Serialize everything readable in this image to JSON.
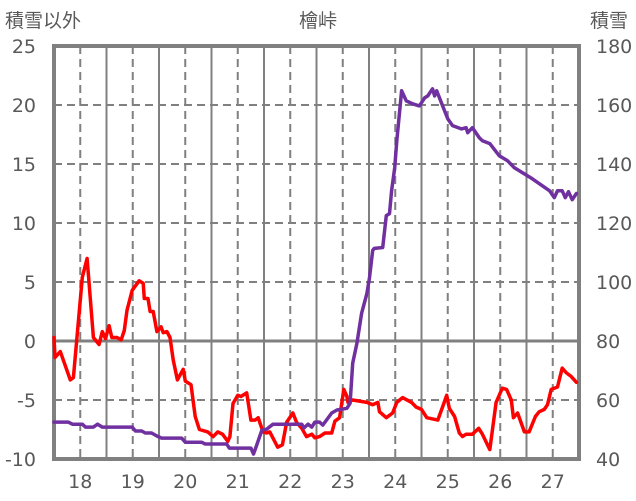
{
  "chart_data": {
    "type": "line",
    "title": "檜峠",
    "ylabel_left": "積雪以外",
    "ylabel_right": "積雪",
    "xlim": [
      17.5,
      27.5
    ],
    "ylim_left": [
      -10,
      25
    ],
    "ylim_right": [
      40,
      180
    ],
    "x_ticks": [
      "18",
      "19",
      "20",
      "21",
      "22",
      "23",
      "24",
      "25",
      "26",
      "27"
    ],
    "y_left_ticks": [
      "25",
      "20",
      "15",
      "10",
      "5",
      "0",
      "-5",
      "-10"
    ],
    "y_right_ticks": [
      "180",
      "160",
      "140",
      "120",
      "100",
      "80",
      "60",
      "40"
    ],
    "grid": true,
    "series": [
      {
        "name": "積雪以外",
        "axis": "left",
        "color": "#ff0000",
        "points": [
          [
            17.5,
            0.3
          ],
          [
            17.52,
            -1.4
          ],
          [
            17.62,
            -0.9
          ],
          [
            17.81,
            -3.3
          ],
          [
            17.87,
            -3.1
          ],
          [
            18.04,
            5.4
          ],
          [
            18.13,
            7.0
          ],
          [
            18.25,
            0.3
          ],
          [
            18.36,
            -0.3
          ],
          [
            18.42,
            0.8
          ],
          [
            18.48,
            0.2
          ],
          [
            18.55,
            1.3
          ],
          [
            18.6,
            0.3
          ],
          [
            18.7,
            0.3
          ],
          [
            18.78,
            0.1
          ],
          [
            18.84,
            0.9
          ],
          [
            18.89,
            2.6
          ],
          [
            18.99,
            4.3
          ],
          [
            19.12,
            5.1
          ],
          [
            19.2,
            4.9
          ],
          [
            19.22,
            3.6
          ],
          [
            19.29,
            3.6
          ],
          [
            19.33,
            2.5
          ],
          [
            19.39,
            2.5
          ],
          [
            19.46,
            0.8
          ],
          [
            19.54,
            1.2
          ],
          [
            19.58,
            0.7
          ],
          [
            19.65,
            0.8
          ],
          [
            19.71,
            0.3
          ],
          [
            19.77,
            -1.6
          ],
          [
            19.85,
            -3.3
          ],
          [
            19.96,
            -2.4
          ],
          [
            20.0,
            -3.4
          ],
          [
            20.11,
            -3.7
          ],
          [
            20.19,
            -6.4
          ],
          [
            20.27,
            -7.5
          ],
          [
            20.43,
            -7.7
          ],
          [
            20.53,
            -8.1
          ],
          [
            20.62,
            -7.7
          ],
          [
            20.71,
            -7.9
          ],
          [
            20.81,
            -8.5
          ],
          [
            20.85,
            -8.1
          ],
          [
            20.91,
            -5.3
          ],
          [
            21.0,
            -4.6
          ],
          [
            21.06,
            -4.7
          ],
          [
            21.17,
            -4.4
          ],
          [
            21.25,
            -6.7
          ],
          [
            21.33,
            -6.7
          ],
          [
            21.39,
            -6.5
          ],
          [
            21.48,
            -7.7
          ],
          [
            21.55,
            -7.8
          ],
          [
            21.61,
            -7.7
          ],
          [
            21.76,
            -9.0
          ],
          [
            21.85,
            -8.8
          ],
          [
            21.93,
            -6.9
          ],
          [
            22.05,
            -6.1
          ],
          [
            22.12,
            -6.9
          ],
          [
            22.22,
            -7.4
          ],
          [
            22.31,
            -8.1
          ],
          [
            22.41,
            -7.9
          ],
          [
            22.47,
            -8.2
          ],
          [
            22.56,
            -8.1
          ],
          [
            22.66,
            -7.8
          ],
          [
            22.79,
            -7.8
          ],
          [
            22.85,
            -6.8
          ],
          [
            22.94,
            -6.5
          ],
          [
            23.02,
            -4.1
          ],
          [
            23.08,
            -4.7
          ],
          [
            23.1,
            -5.2
          ],
          [
            23.19,
            -5.0
          ],
          [
            23.46,
            -5.2
          ],
          [
            23.57,
            -5.4
          ],
          [
            23.67,
            -5.2
          ],
          [
            23.7,
            -6.0
          ],
          [
            23.83,
            -6.5
          ],
          [
            23.95,
            -6.1
          ],
          [
            24.03,
            -5.2
          ],
          [
            24.14,
            -4.8
          ],
          [
            24.31,
            -5.2
          ],
          [
            24.4,
            -5.6
          ],
          [
            24.5,
            -5.8
          ],
          [
            24.6,
            -6.5
          ],
          [
            24.81,
            -6.7
          ],
          [
            24.9,
            -5.6
          ],
          [
            24.98,
            -4.6
          ],
          [
            25.03,
            -5.7
          ],
          [
            25.13,
            -6.4
          ],
          [
            25.22,
            -7.8
          ],
          [
            25.28,
            -8.1
          ],
          [
            25.35,
            -7.9
          ],
          [
            25.47,
            -7.9
          ],
          [
            25.59,
            -7.4
          ],
          [
            25.66,
            -7.9
          ],
          [
            25.8,
            -9.2
          ],
          [
            25.92,
            -5.2
          ],
          [
            26.04,
            -4.0
          ],
          [
            26.12,
            -4.1
          ],
          [
            26.21,
            -5.0
          ],
          [
            26.25,
            -6.5
          ],
          [
            26.33,
            -6.1
          ],
          [
            26.46,
            -7.7
          ],
          [
            26.55,
            -7.7
          ],
          [
            26.67,
            -6.4
          ],
          [
            26.74,
            -6.0
          ],
          [
            26.84,
            -5.8
          ],
          [
            26.9,
            -5.4
          ],
          [
            26.97,
            -4.1
          ],
          [
            27.09,
            -3.9
          ],
          [
            27.18,
            -2.3
          ],
          [
            27.26,
            -2.7
          ],
          [
            27.35,
            -3.0
          ],
          [
            27.45,
            -3.5
          ]
        ]
      },
      {
        "name": "積雪",
        "axis": "right",
        "color": "#7030a0",
        "points": [
          [
            17.5,
            52.5
          ],
          [
            17.77,
            52.5
          ],
          [
            17.85,
            51.8
          ],
          [
            18.04,
            51.8
          ],
          [
            18.1,
            50.8
          ],
          [
            18.25,
            50.8
          ],
          [
            18.33,
            51.8
          ],
          [
            18.42,
            50.8
          ],
          [
            18.99,
            50.8
          ],
          [
            19.05,
            49.5
          ],
          [
            19.17,
            49.5
          ],
          [
            19.24,
            48.8
          ],
          [
            19.36,
            48.8
          ],
          [
            19.46,
            47.8
          ],
          [
            19.55,
            47.1
          ],
          [
            19.93,
            47.1
          ],
          [
            20.0,
            45.7
          ],
          [
            20.31,
            45.7
          ],
          [
            20.38,
            45.1
          ],
          [
            20.79,
            45.1
          ],
          [
            20.84,
            43.7
          ],
          [
            21.25,
            43.7
          ],
          [
            21.3,
            41.7
          ],
          [
            21.35,
            44.1
          ],
          [
            21.46,
            49.8
          ],
          [
            21.55,
            50.1
          ],
          [
            21.67,
            51.8
          ],
          [
            22.22,
            51.8
          ],
          [
            22.26,
            50.5
          ],
          [
            22.34,
            51.8
          ],
          [
            22.41,
            50.8
          ],
          [
            22.47,
            52.5
          ],
          [
            22.56,
            52.5
          ],
          [
            22.62,
            51.5
          ],
          [
            22.79,
            55.6
          ],
          [
            22.89,
            56.6
          ],
          [
            23.08,
            57.2
          ],
          [
            23.14,
            58.9
          ],
          [
            23.19,
            72.5
          ],
          [
            23.27,
            79.2
          ],
          [
            23.36,
            89.4
          ],
          [
            23.46,
            96.1
          ],
          [
            23.51,
            101.5
          ],
          [
            23.57,
            110.7
          ],
          [
            23.6,
            111.4
          ],
          [
            23.76,
            111.7
          ],
          [
            23.83,
            122.5
          ],
          [
            23.89,
            123.2
          ],
          [
            23.93,
            131
          ],
          [
            23.99,
            138.7
          ],
          [
            24.03,
            147.9
          ],
          [
            24.12,
            164.8
          ],
          [
            24.21,
            161.4
          ],
          [
            24.33,
            160.4
          ],
          [
            24.46,
            159.7
          ],
          [
            24.56,
            162.4
          ],
          [
            24.62,
            163.1
          ],
          [
            24.71,
            165.5
          ],
          [
            24.75,
            163.1
          ],
          [
            24.79,
            164.8
          ],
          [
            24.94,
            158
          ],
          [
            25.0,
            155.3
          ],
          [
            25.09,
            153
          ],
          [
            25.26,
            151.9
          ],
          [
            25.35,
            152.3
          ],
          [
            25.38,
            150.6
          ],
          [
            25.47,
            152.3
          ],
          [
            25.6,
            148.9
          ],
          [
            25.66,
            147.9
          ],
          [
            25.8,
            146.9
          ],
          [
            25.98,
            142.8
          ],
          [
            26.14,
            141.1
          ],
          [
            26.27,
            138.7
          ],
          [
            26.61,
            135
          ],
          [
            26.94,
            130.9
          ],
          [
            27.03,
            128.6
          ],
          [
            27.09,
            130.9
          ],
          [
            27.18,
            130.9
          ],
          [
            27.24,
            128.6
          ],
          [
            27.3,
            130.6
          ],
          [
            27.37,
            127.9
          ],
          [
            27.45,
            130
          ]
        ]
      }
    ]
  }
}
